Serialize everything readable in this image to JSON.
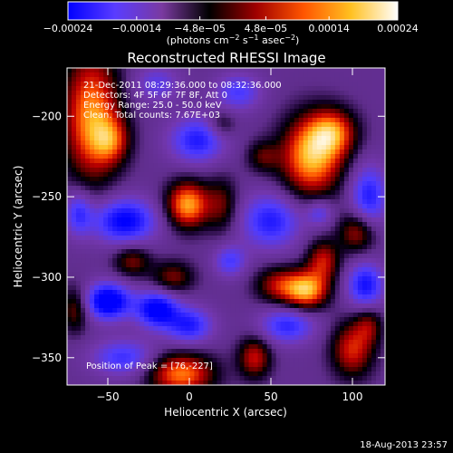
{
  "chart_data": {
    "type": "heatmap",
    "title": "Reconstructed RHESSI Image",
    "xlabel": "Heliocentric X (arcsec)",
    "ylabel": "Heliocentric Y (arcsec)",
    "xlim": [
      -75,
      120
    ],
    "ylim": [
      -367,
      -170
    ],
    "xticks": [
      -50,
      0,
      50,
      100
    ],
    "xtick_labels": [
      "−50",
      "0",
      "50",
      "100"
    ],
    "yticks": [
      -200,
      -250,
      -300,
      -350
    ],
    "ytick_labels": [
      "−200",
      "−250",
      "−300",
      "−350"
    ],
    "colorbar": {
      "range": [
        -0.00024,
        0.00024
      ],
      "ticks": [
        -0.00024,
        -0.00014,
        -4.8e-05,
        4.8e-05,
        0.00014,
        0.00024
      ],
      "tick_labels": [
        "−0.00024",
        "−0.00014",
        "−4.8e−05",
        "4.8e−05",
        "0.00014",
        "0.00024"
      ],
      "units_prefix": "(photons cm",
      "units_sup1": "−2",
      "units_mid": " s",
      "units_sup2": "−1",
      "units_mid2": " asec",
      "units_sup3": "−2",
      "units_suffix": ")",
      "gradient": [
        "#0000ff",
        "#5a3cff",
        "#7a3aa0",
        "#000000",
        "#a00000",
        "#ff5500",
        "#ffc020",
        "#ffffff"
      ]
    },
    "annotations": {
      "time": "21-Dec-2011 08:29:36.000 to 08:32:36.000",
      "detectors": "Detectors: 4F 5F 6F 7F 8F, Att 0",
      "energy": "Energy Range: 25.0 - 50.0 keV",
      "clean": "Clean. Total counts: 7.67E+03",
      "peak": "Position of Peak = [76,-227]"
    },
    "sources": [
      {
        "x": 75,
        "y": -225,
        "amp": 1.0,
        "sx": 13,
        "sy": 17
      },
      {
        "x": 88,
        "y": -210,
        "amp": 0.7,
        "sx": 10,
        "sy": 10
      },
      {
        "x": -1,
        "y": -255,
        "amp": 0.95,
        "sx": 9,
        "sy": 10
      },
      {
        "x": -60,
        "y": -200,
        "amp": 0.9,
        "sx": 12,
        "sy": 28
      },
      {
        "x": -48,
        "y": -215,
        "amp": 0.55,
        "sx": 8,
        "sy": 10
      },
      {
        "x": 72,
        "y": -308,
        "amp": 0.95,
        "sx": 9,
        "sy": 8
      },
      {
        "x": 55,
        "y": -305,
        "amp": 0.55,
        "sx": 10,
        "sy": 8
      },
      {
        "x": 82,
        "y": -290,
        "amp": 0.6,
        "sx": 7,
        "sy": 9
      },
      {
        "x": 103,
        "y": -272,
        "amp": 0.55,
        "sx": 8,
        "sy": 9
      },
      {
        "x": 100,
        "y": -345,
        "amp": 0.65,
        "sx": 9,
        "sy": 12
      },
      {
        "x": 110,
        "y": -330,
        "amp": 0.4,
        "sx": 6,
        "sy": 8
      },
      {
        "x": -5,
        "y": -360,
        "amp": 0.85,
        "sx": 14,
        "sy": 9
      },
      {
        "x": 20,
        "y": -255,
        "amp": 0.4,
        "sx": 7,
        "sy": 12
      },
      {
        "x": -35,
        "y": -290,
        "amp": 0.45,
        "sx": 8,
        "sy": 7
      },
      {
        "x": -10,
        "y": -300,
        "amp": 0.45,
        "sx": 9,
        "sy": 7
      },
      {
        "x": 40,
        "y": -350,
        "amp": 0.6,
        "sx": 7,
        "sy": 9
      },
      {
        "x": -70,
        "y": -320,
        "amp": 0.45,
        "sx": 6,
        "sy": 10
      },
      {
        "x": 45,
        "y": -225,
        "amp": 0.35,
        "sx": 7,
        "sy": 7
      },
      {
        "x": 20,
        "y": -205,
        "amp": 0.3,
        "sx": 6,
        "sy": 6
      },
      {
        "x": -40,
        "y": -265,
        "amp": -0.75,
        "sx": 14,
        "sy": 10
      },
      {
        "x": 5,
        "y": -215,
        "amp": -0.6,
        "sx": 12,
        "sy": 10
      },
      {
        "x": 50,
        "y": -265,
        "amp": -0.6,
        "sx": 13,
        "sy": 12
      },
      {
        "x": -50,
        "y": -315,
        "amp": -0.9,
        "sx": 10,
        "sy": 8
      },
      {
        "x": -20,
        "y": -320,
        "amp": -0.8,
        "sx": 9,
        "sy": 8
      },
      {
        "x": 0,
        "y": -330,
        "amp": -0.6,
        "sx": 10,
        "sy": 8
      },
      {
        "x": 60,
        "y": -330,
        "amp": -0.55,
        "sx": 12,
        "sy": 8
      },
      {
        "x": 110,
        "y": -250,
        "amp": -0.6,
        "sx": 8,
        "sy": 14
      },
      {
        "x": 108,
        "y": -305,
        "amp": -0.65,
        "sx": 8,
        "sy": 10
      },
      {
        "x": -40,
        "y": -350,
        "amp": -0.5,
        "sx": 14,
        "sy": 8
      },
      {
        "x": 30,
        "y": -185,
        "amp": -0.45,
        "sx": 10,
        "sy": 8
      },
      {
        "x": -20,
        "y": -180,
        "amp": -0.35,
        "sx": 10,
        "sy": 8
      },
      {
        "x": 80,
        "y": -260,
        "amp": -0.4,
        "sx": 6,
        "sy": 6
      },
      {
        "x": 25,
        "y": -290,
        "amp": -0.45,
        "sx": 7,
        "sy": 7
      },
      {
        "x": -68,
        "y": -260,
        "amp": -0.5,
        "sx": 6,
        "sy": 10
      }
    ]
  },
  "footer": {
    "date": "18-Aug-2013 23:57"
  }
}
